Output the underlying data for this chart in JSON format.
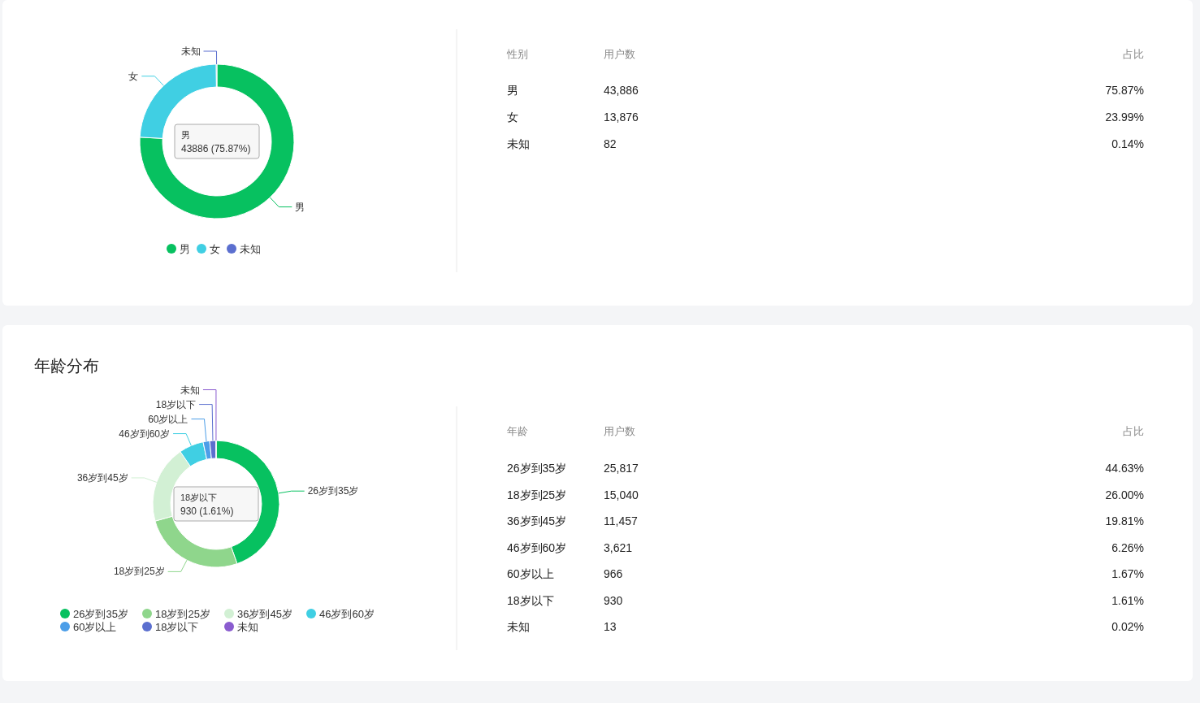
{
  "chart_data": [
    {
      "type": "donut",
      "categories": [
        "男",
        "女",
        "未知"
      ],
      "values": [
        75.87,
        23.99,
        0.14
      ],
      "colors": [
        "#07c160",
        "#40cfe3",
        "#5b6fcf"
      ],
      "legend": "bottom",
      "annotations": [
        "男\n43886 (75.87%)"
      ]
    },
    {
      "type": "other",
      "annotations": [
        "性别",
        "用户数",
        "占比",
        "男",
        "43,886",
        "75.87%",
        "女",
        "13,876",
        "23.99%",
        "未知",
        "82",
        "0.14%"
      ]
    },
    {
      "type": "donut",
      "title": "年龄分布",
      "categories": [
        "26岁到35岁",
        "18岁到25岁",
        "36岁到45岁",
        "46岁到60岁",
        "60岁以上",
        "18岁以下",
        "未知"
      ],
      "values": [
        44.63,
        26.0,
        19.81,
        6.26,
        1.67,
        1.61,
        0.02
      ],
      "colors": [
        "#07c160",
        "#8fd68c",
        "#d2f0d4",
        "#40cfe3",
        "#4c9ee8",
        "#5b6fcf",
        "#8a5ccf"
      ],
      "legend": "bottom",
      "annotations": [
        "18岁以下\n930 (1.61%)"
      ]
    },
    {
      "type": "other",
      "annotations": [
        "年龄",
        "用户数",
        "占比",
        "26岁到35岁",
        "25,817",
        "44.63%",
        "18岁到25岁",
        "15,040",
        "26.00%",
        "36岁到45岁",
        "11,457",
        "19.81%",
        "46岁到60岁",
        "3,621",
        "6.26%",
        "60岁以上",
        "966",
        "1.67%",
        "18岁以下",
        "930",
        "1.61%",
        "未知",
        "13",
        "0.02%"
      ]
    }
  ]
}
